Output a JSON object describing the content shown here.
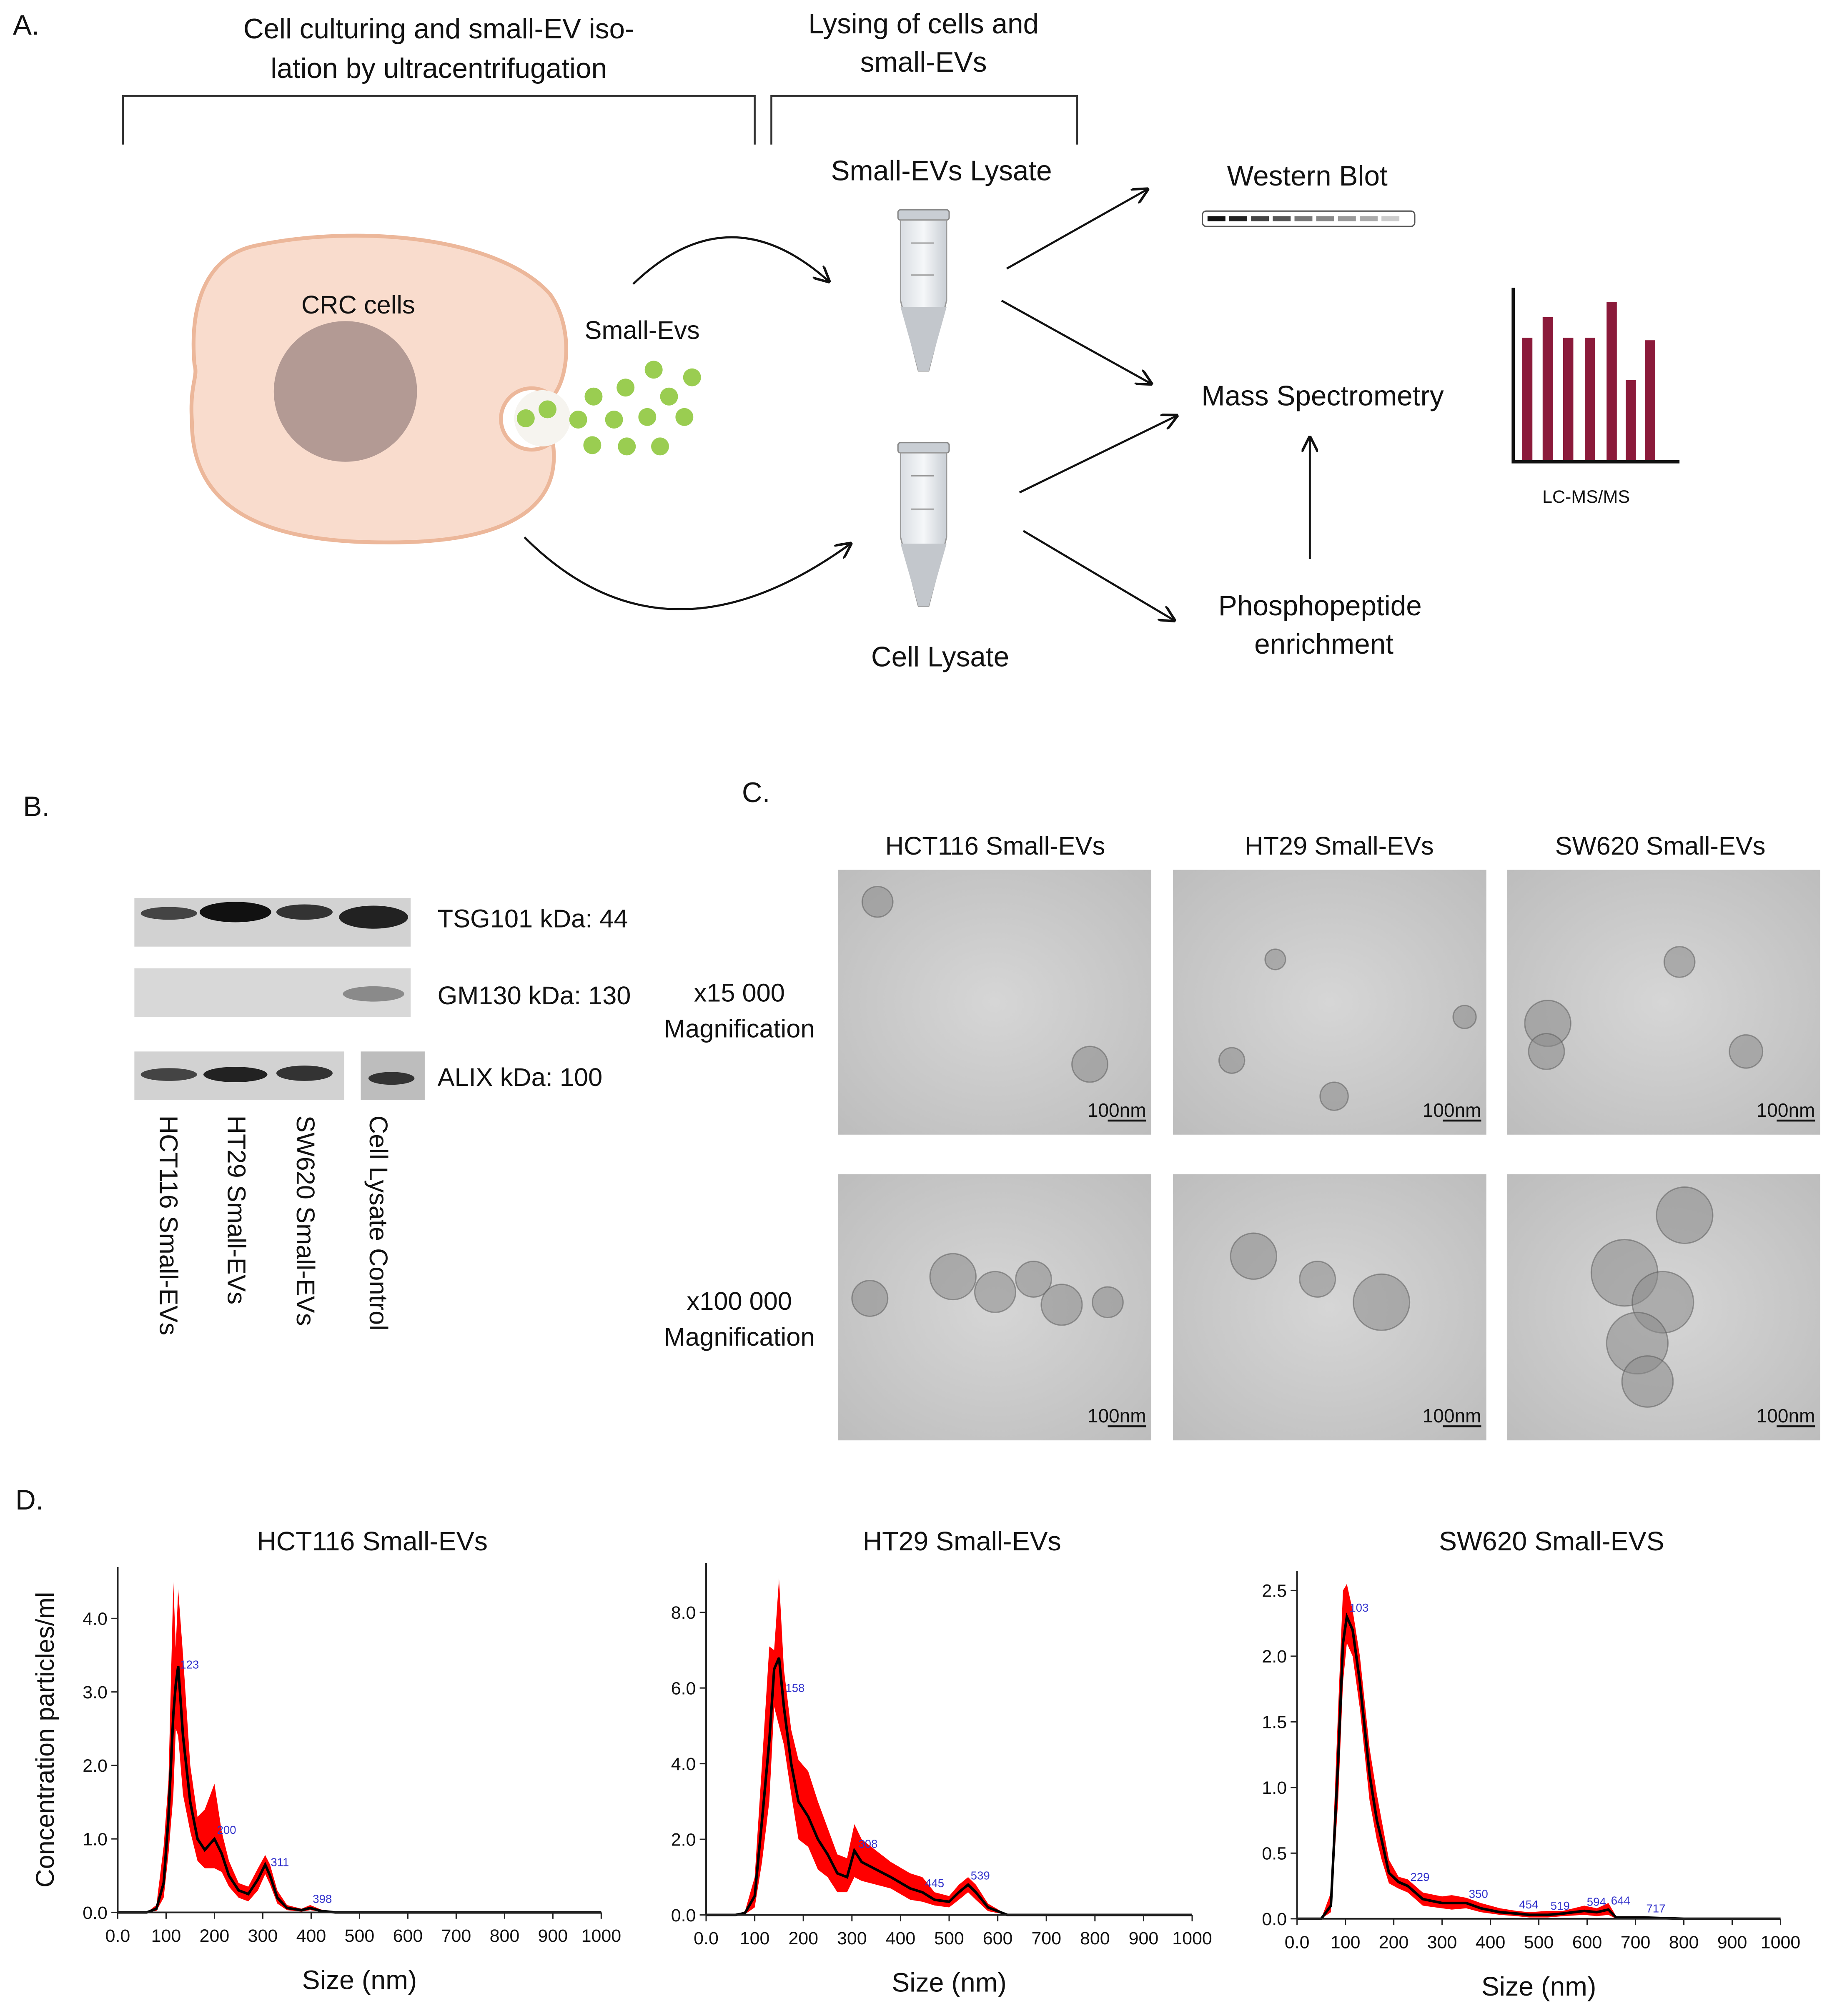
{
  "panel_a": {
    "label": "A.",
    "step1": [
      "Cell culturing and small-EV iso-",
      "lation by ultracentrifugation"
    ],
    "step2": [
      "Lysing of cells and",
      "small-EVs"
    ],
    "cells": "CRC cells",
    "evs": "Small-Evs",
    "ev_lysate": "Small-EVs Lysate",
    "cell_lysate": "Cell Lysate",
    "western": "Western Blot",
    "ms": "Mass Spectrometry",
    "phospho": [
      "Phosphopeptide",
      "enrichment"
    ],
    "lcms": "LC-MS/MS"
  },
  "panel_b": {
    "label": "B.",
    "bands": [
      "TSG101 kDa: 44",
      "GM130 kDa: 130",
      "ALIX kDa: 100"
    ],
    "lanes": [
      "HCT116 Small-EVs",
      "HT29 Small-EVs",
      "SW620 Small-EVs",
      "Cell Lysate Control"
    ]
  },
  "panel_c": {
    "label": "C.",
    "columns": [
      "HCT116 Small-EVs",
      "HT29 Small-EVs",
      "SW620 Small-EVs"
    ],
    "rows": [
      [
        "x15 000",
        "Magnification"
      ],
      [
        "x100 000",
        "Magnification"
      ]
    ],
    "scale_bar": "100nm"
  },
  "panel_d": {
    "label": "D."
  },
  "chart_data": [
    {
      "type": "line",
      "title": "HCT116 Small-EVs",
      "xlabel": "Size (nm)",
      "ylabel": "Concentration particles/ml",
      "color": "#000000",
      "band_color": "#ff0000",
      "x": [
        0,
        60,
        80,
        95,
        105,
        115,
        120,
        125,
        135,
        150,
        165,
        180,
        200,
        215,
        230,
        250,
        270,
        290,
        305,
        315,
        330,
        350,
        380,
        398,
        420,
        450,
        600,
        1000
      ],
      "values": [
        0,
        0,
        0.05,
        0.4,
        1.3,
        2.7,
        3.1,
        3.35,
        2.4,
        1.5,
        1.0,
        0.85,
        1.0,
        0.8,
        0.5,
        0.3,
        0.25,
        0.45,
        0.65,
        0.5,
        0.2,
        0.06,
        0.03,
        0.06,
        0.02,
        0,
        0,
        0
      ],
      "upper": [
        0,
        0,
        0.1,
        0.9,
        1.8,
        4.5,
        3.6,
        4.4,
        3.5,
        2.0,
        1.3,
        1.4,
        1.75,
        1.1,
        0.7,
        0.4,
        0.35,
        0.6,
        0.78,
        0.65,
        0.3,
        0.1,
        0.05,
        0.1,
        0.04,
        0,
        0,
        0
      ],
      "lower": [
        0,
        0,
        0.02,
        0.2,
        0.8,
        1.6,
        2.5,
        2.4,
        1.6,
        1.1,
        0.7,
        0.6,
        0.6,
        0.55,
        0.35,
        0.2,
        0.15,
        0.3,
        0.52,
        0.38,
        0.12,
        0.03,
        0.01,
        0.03,
        0.01,
        0,
        0,
        0
      ],
      "peak_labels": [
        123,
        200,
        311,
        398
      ],
      "xlim": [
        0,
        1000
      ],
      "xticks": [
        {
          "value": 0,
          "label": "0.0"
        },
        100,
        200,
        300,
        400,
        500,
        600,
        700,
        800,
        900,
        1000
      ],
      "ylim": [
        0,
        4.7
      ],
      "yticks": [
        {
          "value": 0,
          "label": "0.0"
        },
        {
          "value": 1,
          "label": "1.0"
        },
        {
          "value": 2,
          "label": "2.0"
        },
        {
          "value": 3,
          "label": "3.0"
        },
        {
          "value": 4,
          "label": "4.0"
        }
      ]
    },
    {
      "type": "line",
      "title": "HT29 Small-EVs",
      "xlabel": "Size (nm)",
      "color": "#000000",
      "band_color": "#ff0000",
      "x": [
        0,
        60,
        80,
        100,
        115,
        130,
        140,
        150,
        160,
        175,
        190,
        210,
        230,
        250,
        270,
        290,
        305,
        320,
        350,
        380,
        420,
        445,
        470,
        500,
        520,
        539,
        555,
        580,
        620,
        1000
      ],
      "values": [
        0,
        0,
        0.05,
        0.5,
        2.5,
        4.6,
        6.5,
        6.8,
        5.5,
        4.0,
        3.0,
        2.6,
        2.0,
        1.6,
        1.1,
        1.0,
        1.7,
        1.4,
        1.2,
        1.0,
        0.7,
        0.6,
        0.4,
        0.35,
        0.6,
        0.8,
        0.6,
        0.2,
        0,
        0
      ],
      "upper": [
        0,
        0,
        0.1,
        1.0,
        4.0,
        7.1,
        7.0,
        8.9,
        6.5,
        4.9,
        4.1,
        3.8,
        3.0,
        2.3,
        1.6,
        1.5,
        2.4,
        2.0,
        1.7,
        1.4,
        1.1,
        1.0,
        0.6,
        0.5,
        0.8,
        1.0,
        0.8,
        0.3,
        0,
        0
      ],
      "lower": [
        0,
        0,
        0.02,
        0.2,
        1.4,
        3.0,
        5.5,
        5.0,
        4.5,
        3.2,
        2.0,
        1.8,
        1.2,
        1.0,
        0.6,
        0.6,
        1.0,
        0.9,
        0.8,
        0.7,
        0.4,
        0.35,
        0.25,
        0.2,
        0.4,
        0.6,
        0.4,
        0.1,
        0,
        0
      ],
      "peak_labels": [
        158,
        308,
        445,
        539
      ],
      "xlim": [
        0,
        1000
      ],
      "xticks": [
        {
          "value": 0,
          "label": "0.0"
        },
        100,
        200,
        300,
        400,
        500,
        600,
        700,
        800,
        900,
        1000
      ],
      "ylim": [
        0,
        9.3
      ],
      "yticks": [
        {
          "value": 0,
          "label": "0.0"
        },
        {
          "value": 2,
          "label": "2.0"
        },
        {
          "value": 4,
          "label": "4.0"
        },
        {
          "value": 6,
          "label": "6.0"
        },
        {
          "value": 8,
          "label": "8.0"
        }
      ]
    },
    {
      "type": "line",
      "title": "SW620 Small-EVS",
      "xlabel": "Size (nm)",
      "color": "#000000",
      "band_color": "#ff0000",
      "x": [
        0,
        50,
        70,
        85,
        95,
        103,
        115,
        130,
        150,
        165,
        175,
        190,
        210,
        229,
        260,
        300,
        320,
        350,
        380,
        420,
        454,
        480,
        519,
        550,
        594,
        620,
        644,
        660,
        717,
        800,
        1000
      ],
      "values": [
        0,
        0,
        0.1,
        1.2,
        2.1,
        2.3,
        2.2,
        1.8,
        1.1,
        0.75,
        0.6,
        0.35,
        0.28,
        0.25,
        0.15,
        0.12,
        0.12,
        0.12,
        0.08,
        0.05,
        0.04,
        0.03,
        0.03,
        0.04,
        0.06,
        0.05,
        0.07,
        0.01,
        0.01,
        0,
        0
      ],
      "upper": [
        0,
        0,
        0.2,
        1.6,
        2.5,
        2.55,
        2.35,
        2.0,
        1.3,
        0.95,
        0.75,
        0.45,
        0.32,
        0.3,
        0.2,
        0.17,
        0.18,
        0.16,
        0.12,
        0.08,
        0.06,
        0.05,
        0.06,
        0.06,
        0.1,
        0.08,
        0.12,
        0.02,
        0.02,
        0,
        0
      ],
      "lower": [
        0,
        0,
        0.05,
        0.9,
        1.8,
        2.1,
        2.0,
        1.6,
        0.9,
        0.6,
        0.45,
        0.27,
        0.23,
        0.2,
        0.1,
        0.08,
        0.07,
        0.08,
        0.05,
        0.03,
        0.02,
        0.01,
        0.01,
        0.02,
        0.03,
        0.02,
        0.03,
        0,
        0,
        0,
        0
      ],
      "peak_labels": [
        103,
        229,
        350,
        454,
        519,
        594,
        644,
        717
      ],
      "xlim": [
        0,
        1000
      ],
      "xticks": [
        {
          "value": 0,
          "label": "0.0"
        },
        100,
        200,
        300,
        400,
        500,
        600,
        700,
        800,
        900,
        1000
      ],
      "ylim": [
        0,
        2.65
      ],
      "yticks": [
        {
          "value": 0,
          "label": "0.0"
        },
        0.5,
        {
          "value": 1,
          "label": "1.0"
        },
        1.5,
        {
          "value": 2,
          "label": "2.0"
        },
        2.5
      ]
    }
  ]
}
